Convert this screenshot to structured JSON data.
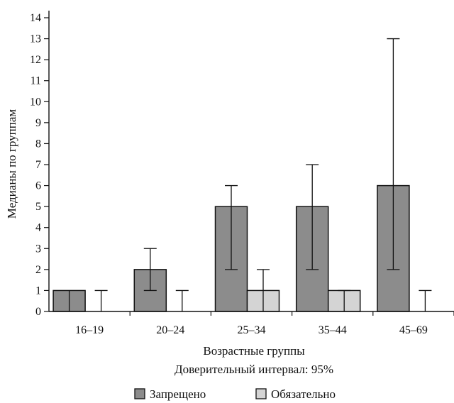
{
  "chart_data": {
    "type": "bar",
    "categories": [
      "16–19",
      "20–24",
      "25–34",
      "35–44",
      "45–69"
    ],
    "series": [
      {
        "name": "Запрещено",
        "color": "#8c8c8c",
        "values": [
          1,
          2,
          5,
          5,
          6
        ],
        "error_low": [
          null,
          1,
          2,
          2,
          2
        ],
        "error_high": [
          null,
          3,
          6,
          7,
          13
        ]
      },
      {
        "name": "Обязательно",
        "color": "#d4d4d4",
        "values": [
          0,
          0,
          1,
          1,
          0
        ],
        "error_low": [
          0,
          0,
          0,
          0,
          0
        ],
        "error_high": [
          1,
          1,
          2,
          1,
          1
        ]
      }
    ],
    "xlabel": "Возрастные группы",
    "subtitle": "Доверительный интервал: 95%",
    "ylabel": "Медианы по группам",
    "ylim": [
      0,
      14
    ],
    "yticks": [
      0,
      1,
      2,
      3,
      4,
      5,
      6,
      7,
      8,
      9,
      10,
      11,
      12,
      13,
      14
    ],
    "grid": false,
    "legend_position": "bottom-center"
  }
}
